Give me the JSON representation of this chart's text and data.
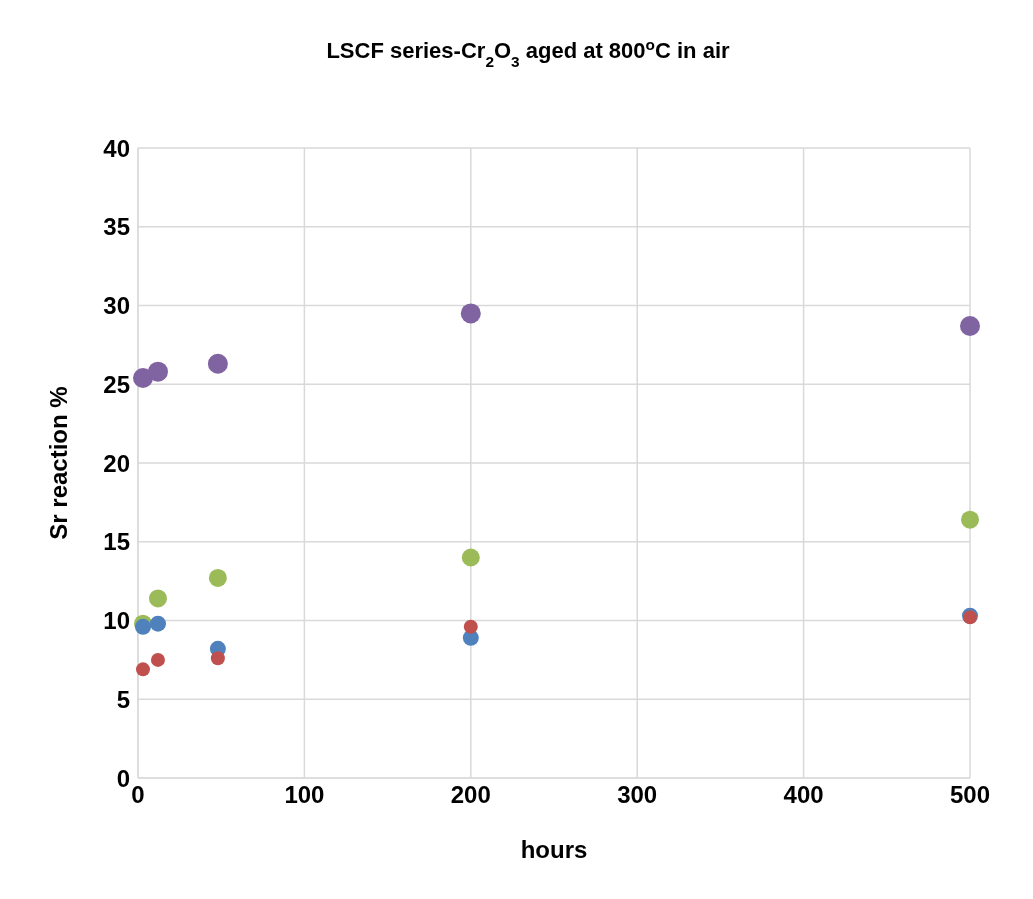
{
  "chart_data": {
    "type": "scatter",
    "title": "LSCF series-Cr$_{2}$O$_{3}$ aged at 800$^{o}$C in air",
    "xlabel": "hours",
    "ylabel": "Sr reaction %",
    "x": [
      3,
      12,
      48,
      200,
      500
    ],
    "series": [
      {
        "color": "#8064a2",
        "values": [
          25.4,
          25.8,
          26.3,
          29.5,
          28.7
        ]
      },
      {
        "color": "#9bbb59",
        "values": [
          9.8,
          11.4,
          12.7,
          14.0,
          16.4
        ]
      },
      {
        "color": "#4f81bd",
        "values": [
          9.6,
          9.8,
          8.2,
          8.9,
          10.3
        ]
      },
      {
        "color": "#c0504d",
        "values": [
          6.9,
          7.5,
          7.6,
          9.6,
          10.2
        ]
      }
    ],
    "xlim": [
      0,
      500
    ],
    "xticks": [
      0,
      100,
      200,
      300,
      400,
      500
    ],
    "ylim": [
      0,
      40
    ],
    "yticks": [
      0,
      5,
      10,
      15,
      20,
      25,
      30,
      35,
      40
    ],
    "grid": true,
    "marker": "circle"
  }
}
